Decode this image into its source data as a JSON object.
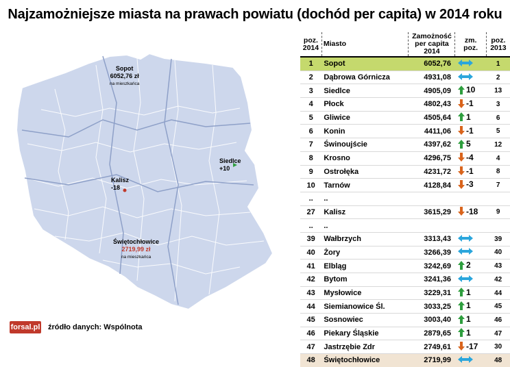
{
  "title": "Najzamożniejsze miasta na prawach powiatu (dochód per capita) w 2014 roku",
  "map": {
    "sopot": {
      "name": "Sopot",
      "value": "6052,76 zł",
      "note": "na mieszkańca"
    },
    "siedlce": {
      "name": "Siedlce",
      "change": "+10"
    },
    "kalisz": {
      "name": "Kalisz",
      "change": "-18"
    },
    "swietochlowice": {
      "name": "Świętochłowice",
      "value": "2719,99 zł",
      "note": "na mieszkańca"
    }
  },
  "table": {
    "headers": {
      "pos2014": "poz. 2014",
      "city": "Miasto",
      "wealth": "Zamożność per capita 2014",
      "change": "zm. poz.",
      "pos2013": "poz. 2013"
    }
  },
  "colors": {
    "up": "#2e9e3e",
    "down": "#d9641c",
    "same": "#2ba6dc",
    "highlight_top": "#c5d96d",
    "highlight_bottom": "#f1e4d3",
    "map_fill": "#cdd7ec"
  },
  "chart_data": {
    "type": "table",
    "title": "Najzamożniejsze miasta na prawach powiatu (dochód per capita) w 2014 roku",
    "columns": [
      "poz. 2014",
      "Miasto",
      "Zamożność per capita 2014",
      "zm. poz.",
      "poz. 2013"
    ],
    "rows": [
      {
        "pos": "1",
        "city": "Sopot",
        "value": "6052,76",
        "dir": "same",
        "chg": "",
        "prev": "1",
        "hl": "top"
      },
      {
        "pos": "2",
        "city": "Dąbrowa Górnicza",
        "value": "4931,08",
        "dir": "same",
        "chg": "",
        "prev": "2",
        "hl": ""
      },
      {
        "pos": "3",
        "city": "Siedlce",
        "value": "4905,09",
        "dir": "up",
        "chg": "10",
        "prev": "13",
        "hl": ""
      },
      {
        "pos": "4",
        "city": "Płock",
        "value": "4802,43",
        "dir": "down",
        "chg": "-1",
        "prev": "3",
        "hl": ""
      },
      {
        "pos": "5",
        "city": "Gliwice",
        "value": "4505,64",
        "dir": "up",
        "chg": "1",
        "prev": "6",
        "hl": ""
      },
      {
        "pos": "6",
        "city": "Konin",
        "value": "4411,06",
        "dir": "down",
        "chg": "-1",
        "prev": "5",
        "hl": ""
      },
      {
        "pos": "7",
        "city": "Świnoujście",
        "value": "4397,62",
        "dir": "up",
        "chg": "5",
        "prev": "12",
        "hl": ""
      },
      {
        "pos": "8",
        "city": "Krosno",
        "value": "4296,75",
        "dir": "down",
        "chg": "-4",
        "prev": "4",
        "hl": ""
      },
      {
        "pos": "9",
        "city": "Ostrołęka",
        "value": "4231,72",
        "dir": "down",
        "chg": "-1",
        "prev": "8",
        "hl": ""
      },
      {
        "pos": "10",
        "city": "Tarnów",
        "value": "4128,84",
        "dir": "down",
        "chg": "-3",
        "prev": "7",
        "hl": ""
      },
      {
        "pos": "..",
        "city": "..",
        "value": "",
        "dir": "",
        "chg": "",
        "prev": "",
        "hl": ""
      },
      {
        "pos": "27",
        "city": "Kalisz",
        "value": "3615,29",
        "dir": "down",
        "chg": "-18",
        "prev": "9",
        "hl": ""
      },
      {
        "pos": "..",
        "city": "..",
        "value": "",
        "dir": "",
        "chg": "",
        "prev": "",
        "hl": ""
      },
      {
        "pos": "39",
        "city": "Wałbrzych",
        "value": "3313,43",
        "dir": "same",
        "chg": "",
        "prev": "39",
        "hl": ""
      },
      {
        "pos": "40",
        "city": "Żory",
        "value": "3266,39",
        "dir": "same",
        "chg": "",
        "prev": "40",
        "hl": ""
      },
      {
        "pos": "41",
        "city": "Elbląg",
        "value": "3242,69",
        "dir": "up",
        "chg": "2",
        "prev": "43",
        "hl": ""
      },
      {
        "pos": "42",
        "city": "Bytom",
        "value": "3241,36",
        "dir": "same",
        "chg": "",
        "prev": "42",
        "hl": ""
      },
      {
        "pos": "43",
        "city": "Mysłowice",
        "value": "3229,31",
        "dir": "up",
        "chg": "1",
        "prev": "44",
        "hl": ""
      },
      {
        "pos": "44",
        "city": "Siemianowice Śl.",
        "value": "3033,25",
        "dir": "up",
        "chg": "1",
        "prev": "45",
        "hl": ""
      },
      {
        "pos": "45",
        "city": "Sosnowiec",
        "value": "3003,40",
        "dir": "up",
        "chg": "1",
        "prev": "46",
        "hl": ""
      },
      {
        "pos": "46",
        "city": "Piekary Śląskie",
        "value": "2879,65",
        "dir": "up",
        "chg": "1",
        "prev": "47",
        "hl": ""
      },
      {
        "pos": "47",
        "city": "Jastrzębie Zdr",
        "value": "2749,61",
        "dir": "down",
        "chg": "-17",
        "prev": "30",
        "hl": ""
      },
      {
        "pos": "48",
        "city": "Świętochłowice",
        "value": "2719,99",
        "dir": "same",
        "chg": "",
        "prev": "48",
        "hl": "bottom"
      }
    ]
  },
  "footer": {
    "logo": "forsal.pl",
    "source": "źródło danych: Wspólnota"
  }
}
